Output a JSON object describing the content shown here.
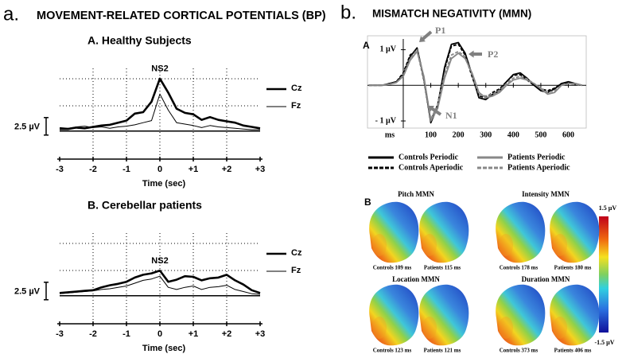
{
  "panel_a": {
    "label": "a.",
    "title": "MOVEMENT-RELATED CORTICAL POTENTIALS (BP)"
  },
  "panel_b": {
    "label": "b.",
    "title": "MISMATCH NEGATIVITY (MMN)"
  },
  "chart_data": [
    {
      "type": "line",
      "title": "A. Healthy Subjects",
      "xlabel": "Time (sec)",
      "annotation": "NS2",
      "scale_bar": {
        "value": 2.5,
        "label": "2.5 µV"
      },
      "x": [
        -3,
        -2.75,
        -2.5,
        -2.25,
        -2,
        -1.75,
        -1.5,
        -1.25,
        -1,
        -0.75,
        -0.5,
        -0.25,
        0,
        0.25,
        0.5,
        0.75,
        1,
        1.25,
        1.5,
        1.75,
        2,
        2.25,
        2.5,
        2.75,
        3
      ],
      "xlim": [
        -3,
        3
      ],
      "ylim": [
        -4,
        8.5
      ],
      "xticks": [
        -3,
        -2,
        -1,
        0,
        {
          "value": 1,
          "label": "+1"
        },
        {
          "value": 2,
          "label": "+2"
        },
        {
          "value": 3,
          "label": "+3"
        }
      ],
      "series": [
        {
          "name": "Cz",
          "color": "#000000",
          "values": [
            0.3,
            0.3,
            0.5,
            0.4,
            0.6,
            0.8,
            0.9,
            1.2,
            1.5,
            2.5,
            2.7,
            4.2,
            7.5,
            5.5,
            3.2,
            2.6,
            2.4,
            1.6,
            2.0,
            1.6,
            1.4,
            1.2,
            0.8,
            0.6,
            0.4
          ]
        },
        {
          "name": "Fz",
          "color": "#000000",
          "values": [
            0.5,
            0.4,
            0.6,
            0.7,
            0.5,
            0.6,
            0.4,
            0.6,
            0.7,
            0.9,
            1.2,
            1.5,
            5.3,
            3.0,
            1.2,
            1.0,
            0.8,
            0.5,
            0.8,
            0.6,
            0.5,
            0.4,
            0.3,
            0.2,
            0.2
          ]
        }
      ]
    },
    {
      "type": "line",
      "title": "B. Cerebellar patients",
      "xlabel": "Time (sec)",
      "annotation": "NS2",
      "scale_bar": {
        "value": 2.5,
        "label": "2.5 µV"
      },
      "x": [
        -3,
        -2.75,
        -2.5,
        -2.25,
        -2,
        -1.75,
        -1.5,
        -1.25,
        -1,
        -0.75,
        -0.5,
        -0.25,
        0,
        0.25,
        0.5,
        0.75,
        1,
        1.25,
        1.5,
        1.75,
        2,
        2.25,
        2.5,
        2.75,
        3
      ],
      "xlim": [
        -3,
        3
      ],
      "ylim": [
        -4,
        8.5
      ],
      "xticks": [
        -3,
        -2,
        -1,
        0,
        {
          "value": 1,
          "label": "+1"
        },
        {
          "value": 2,
          "label": "+2"
        },
        {
          "value": 3,
          "label": "+3"
        }
      ],
      "series": [
        {
          "name": "Cz",
          "color": "#000000",
          "values": [
            0.4,
            0.5,
            0.6,
            0.7,
            0.8,
            1.2,
            1.5,
            1.7,
            2.0,
            2.6,
            3.0,
            3.2,
            3.6,
            2.0,
            2.3,
            2.8,
            2.7,
            2.2,
            2.5,
            2.6,
            3.0,
            2.2,
            1.6,
            0.8,
            0.4
          ]
        },
        {
          "name": "Fz",
          "color": "#000000",
          "values": [
            0.3,
            0.4,
            0.5,
            0.6,
            0.7,
            0.9,
            1.0,
            1.2,
            1.4,
            1.8,
            2.2,
            2.4,
            2.8,
            1.2,
            0.9,
            1.2,
            1.4,
            0.9,
            1.2,
            1.3,
            1.5,
            0.9,
            0.6,
            0.3,
            0.2
          ]
        }
      ]
    },
    {
      "type": "line",
      "title": "A",
      "xlabel": "ms",
      "annotations": [
        "P1",
        "P2",
        "N1"
      ],
      "x": [
        -125,
        -100,
        -75,
        -50,
        -25,
        0,
        25,
        50,
        75,
        100,
        125,
        150,
        175,
        200,
        225,
        250,
        275,
        300,
        325,
        350,
        375,
        400,
        425,
        450,
        475,
        500,
        525,
        550,
        575,
        600,
        625,
        650
      ],
      "xlim": [
        -130,
        665
      ],
      "ylim": [
        -1.2,
        1.3
      ],
      "xticks": [
        100,
        200,
        300,
        400,
        500,
        600
      ],
      "yticks": [
        {
          "value": 1,
          "label": "1 µV"
        },
        {
          "value": -1,
          "label": "- 1 µV"
        }
      ],
      "series": [
        {
          "name": "Controls Periodic",
          "color": "#000000",
          "dashed": false,
          "values": [
            0,
            0,
            0,
            0.05,
            0.1,
            0.3,
            0.8,
            1.05,
            0.2,
            -1.05,
            -0.6,
            0.5,
            1.15,
            1.2,
            0.9,
            0.3,
            -0.35,
            -0.4,
            -0.25,
            -0.15,
            0.1,
            0.3,
            0.35,
            0.2,
            0,
            -0.15,
            -0.2,
            -0.1,
            0.05,
            0.1,
            0.05,
            0
          ]
        },
        {
          "name": "Controls Aperiodic",
          "color": "#000000",
          "dashed": true,
          "values": [
            0,
            0,
            0,
            0.05,
            0.1,
            0.35,
            0.85,
            1.0,
            0.15,
            -1.0,
            -0.55,
            0.45,
            1.1,
            1.15,
            0.85,
            0.25,
            -0.3,
            -0.35,
            -0.2,
            -0.1,
            0.1,
            0.28,
            0.3,
            0.15,
            0,
            -0.1,
            -0.15,
            -0.08,
            0.05,
            0.08,
            0.03,
            0
          ]
        },
        {
          "name": "Patients Periodic",
          "color": "#888888",
          "dashed": false,
          "values": [
            0,
            0,
            0,
            0.03,
            0.08,
            0.25,
            0.7,
            0.95,
            0.25,
            -1.0,
            -0.65,
            0.2,
            0.75,
            0.9,
            0.75,
            0.35,
            -0.2,
            -0.35,
            -0.3,
            -0.2,
            0,
            0.15,
            0.2,
            0.15,
            0.05,
            -0.1,
            -0.25,
            -0.2,
            0,
            0.05,
            0.05,
            0
          ]
        },
        {
          "name": "Patients Aperiodic",
          "color": "#888888",
          "dashed": true,
          "values": [
            0,
            0,
            0,
            0.03,
            0.08,
            0.28,
            0.75,
            1.0,
            0.2,
            -0.95,
            -0.55,
            0.3,
            0.85,
            0.95,
            0.8,
            0.3,
            -0.25,
            -0.3,
            -0.25,
            -0.15,
            0.05,
            0.2,
            0.25,
            0.18,
            0.05,
            -0.08,
            -0.2,
            -0.15,
            0,
            0.05,
            0.03,
            0
          ]
        }
      ]
    }
  ],
  "topomaps": {
    "label": "B",
    "groups": [
      {
        "title": "Pitch MMN",
        "captions": [
          "Controls 109 ms",
          "Patients 115 ms"
        ]
      },
      {
        "title": "Intensity MMN",
        "captions": [
          "Controls 178 ms",
          "Patients 180 ms"
        ]
      },
      {
        "title": "Location MMN",
        "captions": [
          "Controls 123 ms",
          "Patients 121 ms"
        ]
      },
      {
        "title": "Duration MMN",
        "captions": [
          "Controls 373 ms",
          "Patients 406 ms"
        ]
      }
    ],
    "colorbar": {
      "max_label": "1.5 µV",
      "min_label": "-1.5 µV"
    }
  }
}
